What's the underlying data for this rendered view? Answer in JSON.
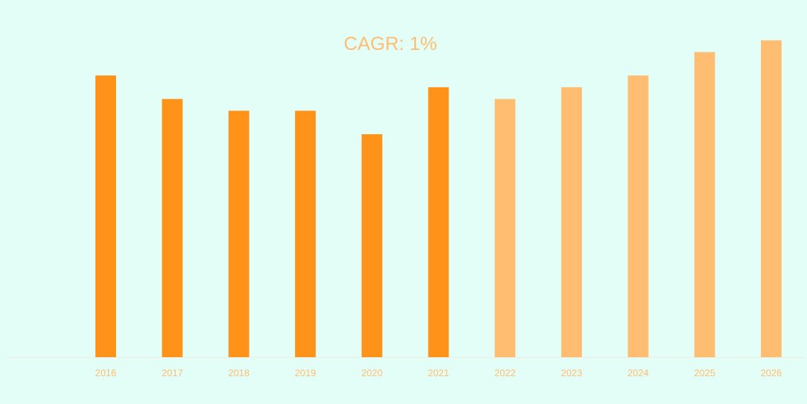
{
  "colors": {
    "background": "#e3fdf7",
    "actual": "#ff9218",
    "forecast": "#ffbd72",
    "text": "#ffbd72",
    "axis": "#f1ece0"
  },
  "chart_data": {
    "type": "bar",
    "title": "CAGR: 1%",
    "xlabel": "",
    "ylabel": "",
    "categories": [
      "2016",
      "2017",
      "2018",
      "2019",
      "2020",
      "2021",
      "2022",
      "2023",
      "2024",
      "2025",
      "2026"
    ],
    "values": [
      24,
      22,
      21,
      21,
      19,
      23,
      22,
      23,
      24,
      26,
      27
    ],
    "bar_kind": [
      "actual",
      "actual",
      "actual",
      "actual",
      "actual",
      "actual",
      "forecast",
      "forecast",
      "forecast",
      "forecast",
      "forecast"
    ],
    "ylim": [
      0,
      28
    ],
    "grid": false,
    "legend": "none"
  }
}
